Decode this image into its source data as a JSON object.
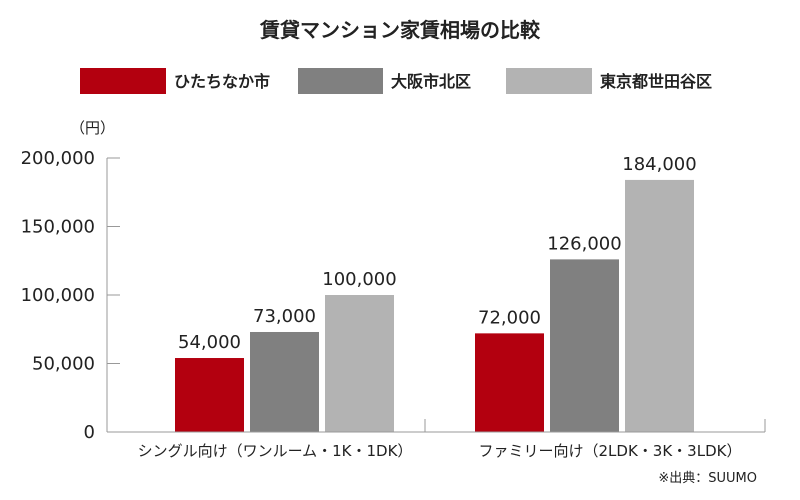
{
  "chart_data": {
    "type": "bar",
    "title": "賃貸マンション家賃相場の比較",
    "unit": "（円）",
    "categories": [
      "シングル向け（ワンルーム・1K・1DK）",
      "ファミリー向け（2LDK・3K・3LDK）"
    ],
    "series": [
      {
        "name": "ひたちなか市",
        "color": "#b3000f",
        "values": [
          54000,
          72000
        ],
        "labels": [
          "54,000",
          "72,000"
        ]
      },
      {
        "name": "大阪市北区",
        "color": "#808080",
        "values": [
          73000,
          126000
        ],
        "labels": [
          "73,000",
          "126,000"
        ]
      },
      {
        "name": "東京都世田谷区",
        "color": "#b3b3b3",
        "values": [
          100000,
          184000
        ],
        "labels": [
          "100,000",
          "184,000"
        ]
      }
    ],
    "yticks": [
      0,
      50000,
      100000,
      150000,
      200000
    ],
    "ytick_labels": [
      "0",
      "50,000",
      "100,000",
      "150,000",
      "200,000"
    ],
    "ylim": [
      0,
      200000
    ],
    "grid": false,
    "legend_position": "top",
    "source": "※出典：SUUMO"
  }
}
